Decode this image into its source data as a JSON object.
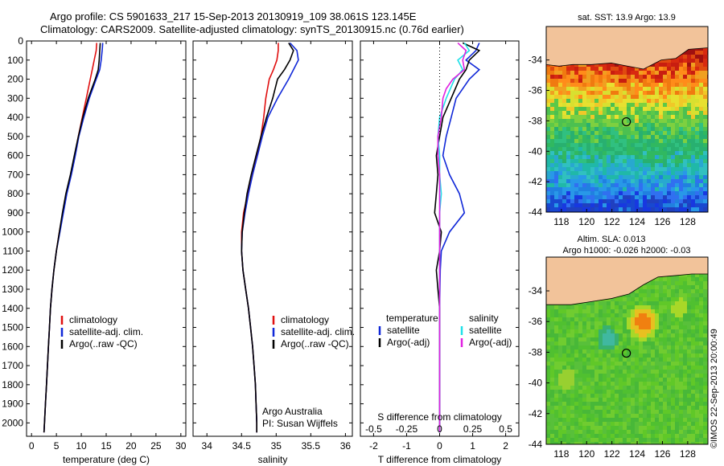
{
  "header": {
    "title_line1": "Argo profile: CS 5901633_217 15-Sep-2013 20130919_109 38.061S 123.145E",
    "title_line2": "Climatology: CARS2009. Satellite-adjusted climatology: synTS_20130915.nc (0.76d earlier)"
  },
  "colors": {
    "climatology": "#e01010",
    "satellite": "#1028d8",
    "argo": "#000000",
    "salinity_satellite": "#20e0e8",
    "salinity_argo": "#e020e0",
    "land": "#f2c39a"
  },
  "chart_data": [
    {
      "id": "temperature",
      "type": "line",
      "xlabel": "temperature (deg C)",
      "ylabel": "",
      "xlim": [
        -1,
        31
      ],
      "ylim": [
        2070,
        0
      ],
      "xticks": [
        0,
        5,
        10,
        15,
        20,
        25,
        30
      ],
      "yticks": [
        0,
        100,
        200,
        300,
        400,
        500,
        600,
        700,
        800,
        900,
        1000,
        1100,
        1200,
        1300,
        1400,
        1500,
        1600,
        1700,
        1800,
        1900,
        2000
      ],
      "legend": [
        "climatology",
        "satellite-adj. clim.",
        "Argo(..raw -QC)"
      ],
      "series": [
        {
          "name": "climatology",
          "color": "#e01010",
          "points": [
            [
              13.1,
              10
            ],
            [
              13.0,
              50
            ],
            [
              12.6,
              100
            ],
            [
              12.2,
              150
            ],
            [
              11.8,
              200
            ],
            [
              11.0,
              300
            ],
            [
              10.2,
              400
            ],
            [
              9.4,
              500
            ],
            [
              8.7,
              600
            ],
            [
              7.9,
              700
            ],
            [
              7.0,
              800
            ],
            [
              6.3,
              900
            ],
            [
              5.6,
              1000
            ],
            [
              5.0,
              1100
            ],
            [
              4.5,
              1200
            ],
            [
              4.1,
              1300
            ],
            [
              3.8,
              1400
            ],
            [
              3.6,
              1500
            ],
            [
              3.4,
              1600
            ],
            [
              3.2,
              1700
            ],
            [
              3.0,
              1800
            ],
            [
              2.8,
              1900
            ],
            [
              2.6,
              2000
            ],
            [
              2.5,
              2050
            ]
          ]
        },
        {
          "name": "satellite-adj. clim.",
          "color": "#1028d8",
          "points": [
            [
              14.3,
              10
            ],
            [
              14.2,
              50
            ],
            [
              14.0,
              100
            ],
            [
              13.7,
              150
            ],
            [
              13.0,
              200
            ],
            [
              11.6,
              300
            ],
            [
              10.5,
              400
            ],
            [
              9.5,
              500
            ],
            [
              8.8,
              600
            ],
            [
              8.0,
              700
            ],
            [
              7.1,
              800
            ],
            [
              6.4,
              900
            ],
            [
              5.7,
              1000
            ],
            [
              5.0,
              1100
            ],
            [
              4.5,
              1200
            ],
            [
              4.1,
              1300
            ],
            [
              3.8,
              1400
            ],
            [
              3.6,
              1500
            ],
            [
              3.4,
              1600
            ],
            [
              3.2,
              1700
            ],
            [
              3.0,
              1800
            ],
            [
              2.8,
              1900
            ],
            [
              2.6,
              2000
            ],
            [
              2.5,
              2050
            ]
          ]
        },
        {
          "name": "Argo(..raw -QC)",
          "color": "#000000",
          "points": [
            [
              13.8,
              10
            ],
            [
              13.7,
              50
            ],
            [
              13.6,
              100
            ],
            [
              13.4,
              150
            ],
            [
              12.8,
              200
            ],
            [
              11.4,
              300
            ],
            [
              10.3,
              400
            ],
            [
              9.4,
              500
            ],
            [
              8.6,
              600
            ],
            [
              7.8,
              700
            ],
            [
              6.9,
              800
            ],
            [
              6.2,
              900
            ],
            [
              5.6,
              1000
            ],
            [
              5.0,
              1100
            ],
            [
              4.5,
              1200
            ],
            [
              4.1,
              1300
            ],
            [
              3.8,
              1400
            ],
            [
              3.6,
              1500
            ],
            [
              3.4,
              1600
            ],
            [
              3.2,
              1700
            ],
            [
              3.0,
              1800
            ],
            [
              2.8,
              1900
            ],
            [
              2.6,
              2000
            ],
            [
              2.5,
              2050
            ]
          ]
        }
      ]
    },
    {
      "id": "salinity",
      "type": "line",
      "xlabel": "salinity",
      "ylabel": "",
      "xlim": [
        33.8,
        36.1
      ],
      "ylim": [
        2070,
        0
      ],
      "xticks": [
        34,
        34.5,
        35,
        35.5,
        36
      ],
      "legend": [
        "climatology",
        "satellite-adj. clim.",
        "Argo(..raw -QC)"
      ],
      "annotation": [
        "Argo Australia",
        "PI: Susan Wijffels"
      ],
      "series": [
        {
          "name": "climatology",
          "color": "#e01010",
          "points": [
            [
              35.03,
              10
            ],
            [
              35.03,
              50
            ],
            [
              35.01,
              100
            ],
            [
              34.96,
              150
            ],
            [
              34.9,
              200
            ],
            [
              34.85,
              300
            ],
            [
              34.82,
              400
            ],
            [
              34.78,
              500
            ],
            [
              34.72,
              600
            ],
            [
              34.66,
              700
            ],
            [
              34.59,
              800
            ],
            [
              34.53,
              900
            ],
            [
              34.5,
              1000
            ],
            [
              34.5,
              1100
            ],
            [
              34.52,
              1200
            ],
            [
              34.56,
              1300
            ],
            [
              34.6,
              1400
            ],
            [
              34.63,
              1500
            ],
            [
              34.66,
              1600
            ],
            [
              34.68,
              1700
            ],
            [
              34.7,
              1800
            ],
            [
              34.71,
              1900
            ],
            [
              34.72,
              2000
            ],
            [
              34.72,
              2050
            ]
          ]
        },
        {
          "name": "satellite-adj. clim.",
          "color": "#1028d8",
          "points": [
            [
              35.2,
              10
            ],
            [
              35.3,
              50
            ],
            [
              35.32,
              100
            ],
            [
              35.25,
              150
            ],
            [
              35.18,
              200
            ],
            [
              35.1,
              250
            ],
            [
              35.02,
              300
            ],
            [
              34.88,
              400
            ],
            [
              34.8,
              500
            ],
            [
              34.73,
              600
            ],
            [
              34.66,
              700
            ],
            [
              34.6,
              800
            ],
            [
              34.55,
              900
            ],
            [
              34.51,
              1000
            ],
            [
              34.5,
              1100
            ],
            [
              34.52,
              1200
            ],
            [
              34.56,
              1300
            ],
            [
              34.6,
              1400
            ],
            [
              34.63,
              1500
            ],
            [
              34.66,
              1600
            ],
            [
              34.68,
              1700
            ],
            [
              34.7,
              1800
            ],
            [
              34.71,
              1900
            ],
            [
              34.72,
              2000
            ],
            [
              34.72,
              2050
            ]
          ]
        },
        {
          "name": "Argo(..raw -QC)",
          "color": "#000000",
          "points": [
            [
              35.18,
              10
            ],
            [
              35.25,
              50
            ],
            [
              35.2,
              100
            ],
            [
              35.12,
              150
            ],
            [
              35.02,
              200
            ],
            [
              34.95,
              300
            ],
            [
              34.86,
              400
            ],
            [
              34.78,
              500
            ],
            [
              34.71,
              600
            ],
            [
              34.64,
              700
            ],
            [
              34.58,
              800
            ],
            [
              34.54,
              900
            ],
            [
              34.51,
              1000
            ],
            [
              34.5,
              1100
            ],
            [
              34.52,
              1200
            ],
            [
              34.56,
              1300
            ],
            [
              34.6,
              1400
            ],
            [
              34.63,
              1500
            ],
            [
              34.66,
              1600
            ],
            [
              34.68,
              1700
            ],
            [
              34.7,
              1800
            ],
            [
              34.71,
              1900
            ],
            [
              34.72,
              2000
            ],
            [
              34.72,
              2050
            ]
          ]
        }
      ]
    },
    {
      "id": "difference",
      "type": "line",
      "xlabel": "T difference from climatology",
      "top_xlabel": "S difference from climatology",
      "xlim": [
        -2.4,
        2.4
      ],
      "ylim": [
        2070,
        0
      ],
      "xticks": [
        -2,
        -1,
        0,
        1,
        2
      ],
      "top_xticks": [
        "-0.5",
        "-0.25",
        "0",
        "0.25",
        "0.5"
      ],
      "legend_headers": [
        "temperature",
        "salinity"
      ],
      "legend_left": [
        "satellite",
        "Argo(-adj)"
      ],
      "legend_right": [
        "satellite",
        "Argo(-adj)"
      ],
      "series": [
        {
          "name": "temperature satellite",
          "color": "#1028d8",
          "points": [
            [
              1.2,
              10
            ],
            [
              1.1,
              50
            ],
            [
              0.8,
              100
            ],
            [
              1.2,
              150
            ],
            [
              0.9,
              200
            ],
            [
              0.5,
              300
            ],
            [
              0.35,
              400
            ],
            [
              0.2,
              500
            ],
            [
              0.1,
              600
            ],
            [
              0.3,
              700
            ],
            [
              0.6,
              800
            ],
            [
              0.75,
              900
            ],
            [
              0.3,
              1000
            ],
            [
              0.05,
              1100
            ],
            [
              0.02,
              1200
            ],
            [
              0.0,
              1400
            ],
            [
              0.0,
              2050
            ]
          ]
        },
        {
          "name": "temperature Argo(-adj)",
          "color": "#000000",
          "points": [
            [
              0.7,
              10
            ],
            [
              1.2,
              50
            ],
            [
              0.9,
              100
            ],
            [
              0.8,
              150
            ],
            [
              0.6,
              200
            ],
            [
              0.35,
              300
            ],
            [
              0.1,
              400
            ],
            [
              0.0,
              500
            ],
            [
              -0.1,
              600
            ],
            [
              -0.05,
              700
            ],
            [
              -0.1,
              800
            ],
            [
              -0.15,
              900
            ],
            [
              0.05,
              1000
            ],
            [
              0.0,
              1100
            ],
            [
              -0.1,
              1200
            ],
            [
              -0.05,
              1300
            ],
            [
              0.0,
              1400
            ],
            [
              0.0,
              2050
            ]
          ]
        },
        {
          "name": "salinity satellite",
          "color": "#20e0e8",
          "points": [
            [
              0.75,
              10
            ],
            [
              0.9,
              50
            ],
            [
              0.55,
              100
            ],
            [
              0.7,
              150
            ],
            [
              0.45,
              200
            ],
            [
              0.2,
              300
            ],
            [
              0.0,
              400
            ],
            [
              -0.05,
              500
            ],
            [
              0.0,
              600
            ],
            [
              0.0,
              700
            ],
            [
              0.05,
              800
            ],
            [
              0.0,
              900
            ],
            [
              0.0,
              1100
            ],
            [
              0.0,
              2050
            ]
          ]
        },
        {
          "name": "salinity Argo(-adj)",
          "color": "#e020e0",
          "points": [
            [
              0.55,
              10
            ],
            [
              0.8,
              50
            ],
            [
              0.7,
              100
            ],
            [
              0.75,
              150
            ],
            [
              0.4,
              200
            ],
            [
              0.2,
              250
            ],
            [
              0.1,
              300
            ],
            [
              0.05,
              400
            ],
            [
              -0.05,
              500
            ],
            [
              -0.05,
              600
            ],
            [
              0.0,
              700
            ],
            [
              0.0,
              800
            ],
            [
              0.0,
              1000
            ],
            [
              0.0,
              2050
            ]
          ]
        }
      ]
    },
    {
      "id": "sst_map",
      "type": "heatmap",
      "title": "sat. SST: 13.9  Argo: 13.9",
      "xticks": [
        118,
        120,
        122,
        124,
        126,
        128
      ],
      "yticks": [
        -34,
        -36,
        -38,
        -40,
        -42,
        -44
      ],
      "xlim": [
        116.8,
        129.6
      ],
      "ylim": [
        -44,
        -31.8
      ],
      "argo_position": [
        123.145,
        -38.061
      ]
    },
    {
      "id": "sla_map",
      "type": "heatmap",
      "title_line1": "Altim. SLA: 0.013",
      "title_line2": "Argo h1000: -0.026 h2000: -0.03",
      "xticks": [
        118,
        120,
        122,
        124,
        126,
        128
      ],
      "yticks": [
        -34,
        -36,
        -38,
        -40,
        -42,
        -44
      ],
      "xlim": [
        116.8,
        129.6
      ],
      "ylim": [
        -44,
        -31.8
      ],
      "argo_position": [
        123.145,
        -38.061
      ]
    }
  ],
  "footer": {
    "stamp": "©IMOS 22-Sep-2013 20:00:49"
  }
}
